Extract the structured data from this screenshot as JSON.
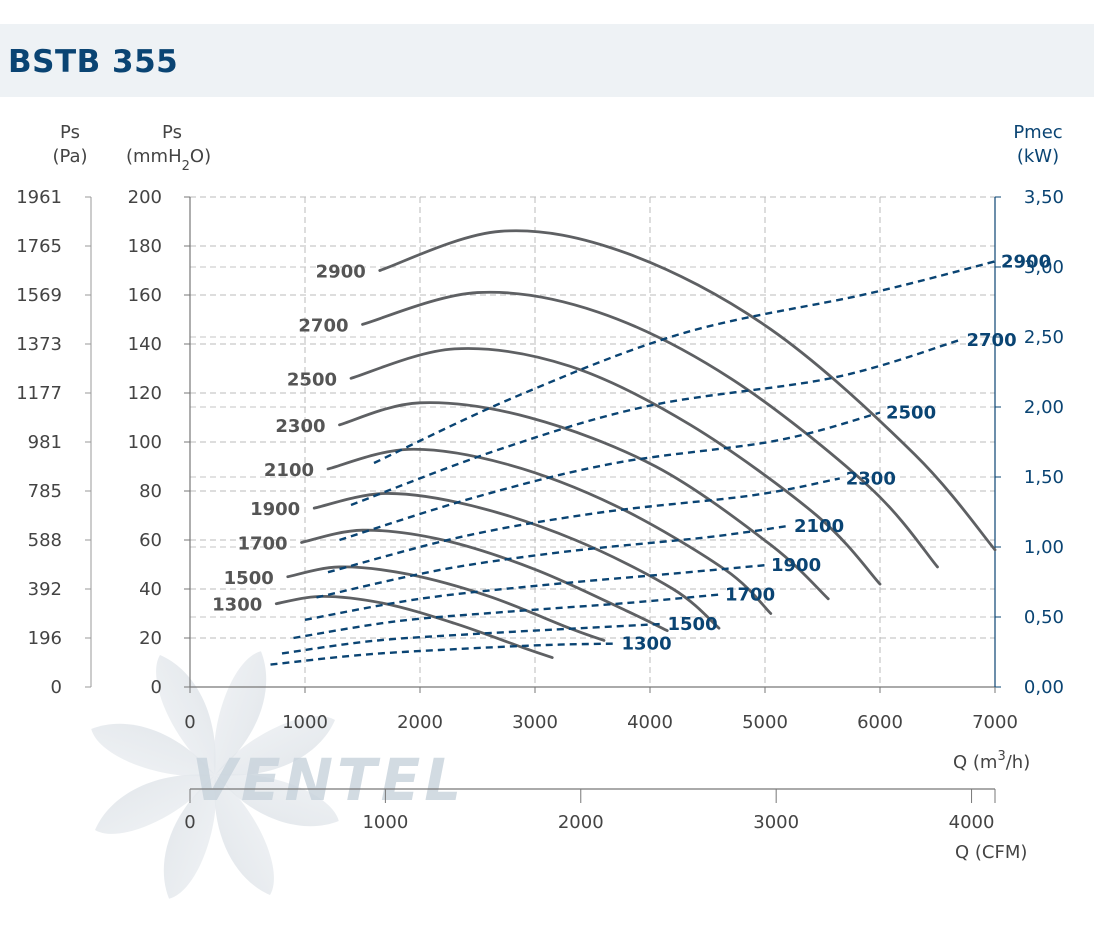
{
  "header": {
    "title": "BSTB 355"
  },
  "axes": {
    "ps_pa_label_1": "Ps",
    "ps_pa_label_2": "(Pa)",
    "ps_mm_label_1": "Ps",
    "ps_mm_label_2": "(mmH",
    "ps_mm_label_sub": "2",
    "ps_mm_label_3": "O)",
    "pmec_label_1": "Pmec",
    "pmec_label_2": "(kW)",
    "q_m3h_label_1": "Q (m",
    "q_m3h_label_sup": "3",
    "q_m3h_label_2": "/h)",
    "q_cfm_label": "Q (CFM)"
  },
  "chart_data": {
    "type": "line",
    "x_axis": {
      "label": "Q (m3/h)",
      "range": [
        0,
        7000
      ],
      "ticks": [
        "0",
        "1000",
        "2000",
        "3000",
        "4000",
        "5000",
        "6000",
        "7000"
      ]
    },
    "x2_axis": {
      "label": "Q (CFM)",
      "range": [
        0,
        4120
      ],
      "ticks": [
        "0",
        "1000",
        "2000",
        "3000",
        "4000"
      ]
    },
    "y_axis_mm": {
      "label": "Ps (mmH2O)",
      "range": [
        0,
        200
      ],
      "ticks": [
        "0",
        "20",
        "40",
        "60",
        "80",
        "100",
        "120",
        "140",
        "160",
        "180",
        "200"
      ]
    },
    "y_axis_pa": {
      "label": "Ps (Pa)",
      "ticks": [
        "0",
        "196",
        "392",
        "588",
        "785",
        "981",
        "1177",
        "1373",
        "1569",
        "1765",
        "1961"
      ]
    },
    "y_axis_right": {
      "label": "Pmec (kW)",
      "range": [
        0,
        3.5
      ],
      "ticks": [
        "0,00",
        "0,50",
        "1,00",
        "1,50",
        "2,00",
        "2,50",
        "3,00",
        "3,50"
      ]
    },
    "grid": true,
    "pressure_series": [
      {
        "name": "1300",
        "points": [
          [
            750,
            34
          ],
          [
            1150,
            37
          ],
          [
            1700,
            34
          ],
          [
            2300,
            26
          ],
          [
            2900,
            16
          ],
          [
            3150,
            12
          ]
        ]
      },
      {
        "name": "1500",
        "points": [
          [
            850,
            45
          ],
          [
            1300,
            49
          ],
          [
            1900,
            46
          ],
          [
            2600,
            37
          ],
          [
            3300,
            24
          ],
          [
            3600,
            19
          ]
        ]
      },
      {
        "name": "1700",
        "points": [
          [
            970,
            59
          ],
          [
            1500,
            64
          ],
          [
            2200,
            60
          ],
          [
            3000,
            48
          ],
          [
            3800,
            31
          ],
          [
            4150,
            23
          ]
        ]
      },
      {
        "name": "1900",
        "points": [
          [
            1080,
            73
          ],
          [
            1700,
            79
          ],
          [
            2450,
            74
          ],
          [
            3350,
            60
          ],
          [
            4200,
            40
          ],
          [
            4600,
            24
          ]
        ]
      },
      {
        "name": "2100",
        "points": [
          [
            1200,
            89
          ],
          [
            1900,
            97
          ],
          [
            2750,
            91
          ],
          [
            3700,
            74
          ],
          [
            4650,
            48
          ],
          [
            5050,
            30
          ]
        ]
      },
      {
        "name": "2300",
        "points": [
          [
            1300,
            107
          ],
          [
            2000,
            116
          ],
          [
            2950,
            110
          ],
          [
            4050,
            90
          ],
          [
            5050,
            58
          ],
          [
            5550,
            36
          ]
        ]
      },
      {
        "name": "2500",
        "points": [
          [
            1400,
            126
          ],
          [
            2300,
            138
          ],
          [
            3300,
            131
          ],
          [
            4350,
            107
          ],
          [
            5450,
            70
          ],
          [
            6000,
            42
          ]
        ]
      },
      {
        "name": "2700",
        "points": [
          [
            1500,
            148
          ],
          [
            2500,
            161
          ],
          [
            3550,
            153
          ],
          [
            4700,
            126
          ],
          [
            5900,
            82
          ],
          [
            6500,
            49
          ]
        ]
      },
      {
        "name": "2900",
        "points": [
          [
            1650,
            170
          ],
          [
            2700,
            186
          ],
          [
            3800,
            177
          ],
          [
            5050,
            146
          ],
          [
            6300,
            95
          ],
          [
            7000,
            56
          ]
        ]
      }
    ],
    "power_series": [
      {
        "name": "1300",
        "points": [
          [
            700,
            0.16
          ],
          [
            1500,
            0.23
          ],
          [
            2300,
            0.27
          ],
          [
            3100,
            0.3
          ],
          [
            3700,
            0.31
          ]
        ]
      },
      {
        "name": "1500",
        "points": [
          [
            800,
            0.24
          ],
          [
            1600,
            0.33
          ],
          [
            2500,
            0.38
          ],
          [
            3400,
            0.42
          ],
          [
            4100,
            0.45
          ]
        ]
      },
      {
        "name": "1700",
        "points": [
          [
            900,
            0.35
          ],
          [
            1800,
            0.47
          ],
          [
            2800,
            0.54
          ],
          [
            3800,
            0.6
          ],
          [
            4600,
            0.66
          ]
        ]
      },
      {
        "name": "1900",
        "points": [
          [
            1000,
            0.48
          ],
          [
            2000,
            0.63
          ],
          [
            3100,
            0.73
          ],
          [
            4200,
            0.81
          ],
          [
            5000,
            0.87
          ]
        ]
      },
      {
        "name": "2100",
        "points": [
          [
            1100,
            0.64
          ],
          [
            2200,
            0.84
          ],
          [
            3300,
            0.97
          ],
          [
            4500,
            1.07
          ],
          [
            5200,
            1.15
          ]
        ]
      },
      {
        "name": "2300",
        "points": [
          [
            1200,
            0.82
          ],
          [
            2400,
            1.08
          ],
          [
            3600,
            1.25
          ],
          [
            4900,
            1.37
          ],
          [
            5650,
            1.49
          ]
        ]
      },
      {
        "name": "2500",
        "points": [
          [
            1300,
            1.05
          ],
          [
            2500,
            1.36
          ],
          [
            3700,
            1.6
          ],
          [
            5100,
            1.76
          ],
          [
            6000,
            1.96
          ]
        ]
      },
      {
        "name": "2700",
        "points": [
          [
            1400,
            1.3
          ],
          [
            2700,
            1.7
          ],
          [
            4000,
            2.01
          ],
          [
            5600,
            2.21
          ],
          [
            6700,
            2.48
          ]
        ]
      },
      {
        "name": "2900",
        "points": [
          [
            1600,
            1.6
          ],
          [
            2850,
            2.08
          ],
          [
            4300,
            2.53
          ],
          [
            5900,
            2.81
          ],
          [
            7000,
            3.04
          ]
        ]
      }
    ]
  },
  "watermark": {
    "text": "VENTEL"
  }
}
